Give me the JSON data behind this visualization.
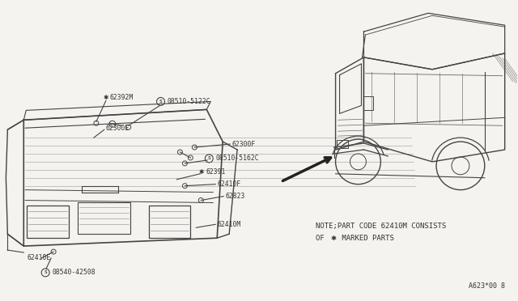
{
  "bg_color": "#f5f3ef",
  "line_color": "#444444",
  "text_color": "#333333",
  "note_line1": "NOTE;PART CODE 62410M CONSISTS",
  "note_line2": "OF ✱ MARKED PARTS",
  "doc_number": "A623*00 8",
  "figsize": [
    6.4,
    3.72
  ],
  "dpi": 100,
  "label_fs": 5.8,
  "note_fs": 6.5
}
